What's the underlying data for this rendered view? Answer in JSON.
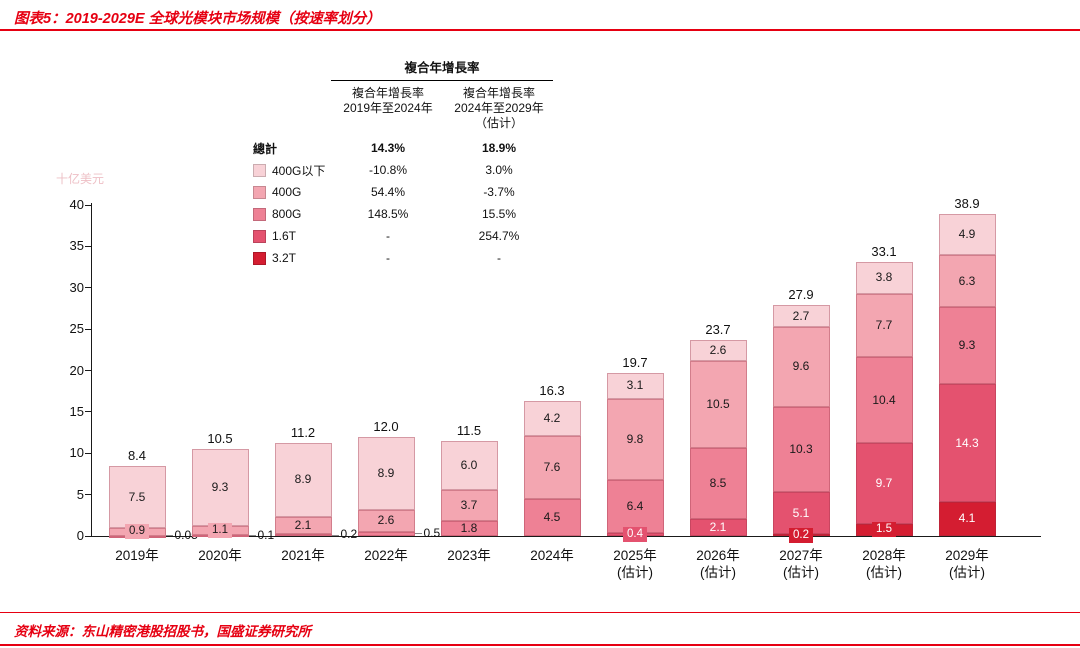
{
  "page": {
    "title": "图表5：2019-2029E 全球光模块市场规模（按速率划分）",
    "source": "资料来源：东山精密港股招股书，国盛证券研究所",
    "accent_red": "#e60012"
  },
  "chart_data": {
    "type": "bar",
    "stacked": true,
    "title": "2019-2029E 全球光模块市场规模（按速率划分）",
    "unit_label": "十亿美元",
    "ylim": [
      0,
      40
    ],
    "ytick_step": 5,
    "grid": false,
    "categories": [
      "2019年",
      "2020年",
      "2021年",
      "2022年",
      "2023年",
      "2024年",
      "2025年",
      "2026年",
      "2027年",
      "2028年",
      "2029年"
    ],
    "category_subs": [
      "",
      "",
      "",
      "",
      "",
      "",
      "(估计)",
      "(估计)",
      "(估计)",
      "(估计)",
      "(估计)"
    ],
    "totals": [
      8.4,
      10.5,
      11.2,
      12.0,
      11.5,
      16.3,
      19.7,
      23.7,
      27.9,
      33.1,
      38.9
    ],
    "totals_labels": [
      "8.4",
      "10.5",
      "11.2",
      "12.0",
      "11.5",
      "16.3",
      "19.7",
      "23.7",
      "27.9",
      "33.1",
      "38.9"
    ],
    "series": [
      {
        "name": "400G以下",
        "color": "#f8d2d7",
        "text": "#1a1a1a",
        "values": [
          7.5,
          9.3,
          8.9,
          8.9,
          6.0,
          4.2,
          3.1,
          2.6,
          2.7,
          3.8,
          4.9
        ],
        "labels": [
          "7.5",
          "9.3",
          "8.9",
          "8.9",
          "6.0",
          "4.2",
          "3.1",
          "2.6",
          "2.7",
          "3.8",
          "4.9"
        ]
      },
      {
        "name": "400G",
        "color": "#f3a6b1",
        "text": "#1a1a1a",
        "values": [
          0.9,
          1.1,
          2.1,
          2.6,
          3.7,
          7.6,
          9.8,
          10.5,
          9.6,
          7.7,
          6.3
        ],
        "labels": [
          "0.9",
          "1.1",
          "2.1",
          "2.6",
          "3.7",
          "7.6",
          "9.8",
          "10.5",
          "9.6",
          "7.7",
          "6.3"
        ]
      },
      {
        "name": "800G",
        "color": "#ee8195",
        "text": "#1a1a1a",
        "outside_small": true,
        "values": [
          0.05,
          0.1,
          0.2,
          0.5,
          1.8,
          4.5,
          6.4,
          8.5,
          10.3,
          10.4,
          9.3
        ],
        "labels": [
          "0.05",
          "0.1",
          "0.2",
          "0.5",
          "1.8",
          "4.5",
          "6.4",
          "8.5",
          "10.3",
          "10.4",
          "9.3"
        ]
      },
      {
        "name": "1.6T",
        "color": "#e4526f",
        "text": "#ffffff",
        "values": [
          0,
          0,
          0,
          0,
          0,
          0,
          0.4,
          2.1,
          5.1,
          9.7,
          14.3
        ],
        "labels": [
          "",
          "",
          "",
          "",
          "",
          "",
          "0.4",
          "2.1",
          "5.1",
          "9.7",
          "14.3"
        ]
      },
      {
        "name": "3.2T",
        "color": "#d41d31",
        "text": "#ffffff",
        "values": [
          0,
          0,
          0,
          0,
          0,
          0,
          0,
          0,
          0.2,
          1.5,
          4.1
        ],
        "labels": [
          "",
          "",
          "",
          "",
          "",
          "",
          "",
          "",
          "0.2",
          "1.5",
          "4.1"
        ]
      }
    ],
    "cagr_table": {
      "title": "複合年增長率",
      "col1_header": {
        "line1": "複合年增長率",
        "line2": "2019年至2024年"
      },
      "col2_header": {
        "line1": "複合年增長率",
        "line2": "2024年至2029年",
        "line3": "（估计）"
      },
      "total_row": {
        "label": "總計",
        "col1": "14.3%",
        "col2": "18.9%"
      },
      "rows": [
        {
          "label": "400G以下",
          "col1": "-10.8%",
          "col2": "3.0%"
        },
        {
          "label": "400G",
          "col1": "54.4%",
          "col2": "-3.7%"
        },
        {
          "label": "800G",
          "col1": "148.5%",
          "col2": "15.5%"
        },
        {
          "label": "1.6T",
          "col1": "-",
          "col2": "254.7%"
        },
        {
          "label": "3.2T",
          "col1": "-",
          "col2": "-"
        }
      ]
    }
  }
}
